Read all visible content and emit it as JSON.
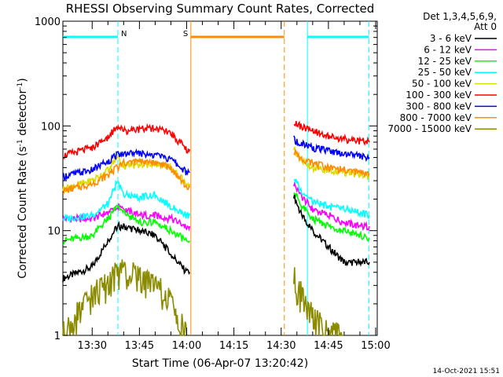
{
  "chart_data": {
    "type": "line",
    "title": "RHESSI Observing Summary Count Rates, Corrected",
    "xlabel": "Start Time (06-Apr-07 13:20:42)",
    "ylabel_main": "Corrected Count Rate (s",
    "ylabel_sup1": "-1",
    "ylabel_mid": " detector",
    "ylabel_sup2": "-1",
    "ylabel_end": ")",
    "ylim": [
      1,
      1000
    ],
    "yscale": "log",
    "y_ticks": [
      {
        "value": 1,
        "label": "1"
      },
      {
        "value": 10,
        "label": "10"
      },
      {
        "value": 100,
        "label": "100"
      },
      {
        "value": 1000,
        "label": "1000"
      }
    ],
    "x_range": [
      "13:20:42",
      "15:00:30"
    ],
    "x_ticks": [
      "13:30",
      "13:45",
      "14:00",
      "14:15",
      "14:30",
      "14:45",
      "15:00"
    ],
    "legend_header": [
      "Det 1,3,4,5,6,9,",
      "Att 0"
    ],
    "legend_position": "top-right outside",
    "series": [
      {
        "name": "3 - 6 keV",
        "color": "#000000",
        "x": [
          "13:20:42",
          "13:30",
          "13:35",
          "13:38",
          "13:40",
          "13:45",
          "13:50",
          "13:55",
          "14:00",
          "14:01",
          "14:34",
          "14:36",
          "14:40",
          "14:45",
          "14:50",
          "14:55",
          "14:58"
        ],
        "y": [
          3.5,
          4.5,
          8,
          11,
          11,
          10,
          9,
          6,
          4,
          4,
          22,
          15,
          10,
          7,
          5,
          5,
          5
        ]
      },
      {
        "name": "6 - 12 keV",
        "color": "#ff00ff",
        "x": [
          "13:20:42",
          "13:30",
          "13:35",
          "13:38",
          "13:40",
          "13:45",
          "13:50",
          "13:55",
          "14:00",
          "14:01",
          "14:34",
          "14:36",
          "14:40",
          "14:45",
          "14:50",
          "14:55",
          "14:58"
        ],
        "y": [
          13,
          13,
          15,
          17,
          16,
          14,
          14,
          13,
          11,
          11,
          28,
          22,
          16,
          14,
          12,
          11,
          11
        ]
      },
      {
        "name": "12 - 25 keV",
        "color": "#00ff00",
        "x": [
          "13:20:42",
          "13:30",
          "13:35",
          "13:38",
          "13:40",
          "13:45",
          "13:50",
          "13:55",
          "14:00",
          "14:01",
          "14:34",
          "14:36",
          "14:40",
          "14:45",
          "14:50",
          "14:55",
          "14:58"
        ],
        "y": [
          8,
          9,
          13,
          17,
          15,
          12,
          12,
          10,
          8,
          8,
          25,
          18,
          13,
          11,
          10,
          9,
          8.5
        ]
      },
      {
        "name": "25 - 50 keV",
        "color": "#00ffff",
        "x": [
          "13:20:42",
          "13:30",
          "13:35",
          "13:38",
          "13:40",
          "13:45",
          "13:50",
          "13:55",
          "14:00",
          "14:01",
          "14:34",
          "14:36",
          "14:40",
          "14:45",
          "14:50",
          "14:55",
          "14:58"
        ],
        "y": [
          13,
          14,
          18,
          30,
          22,
          21,
          22,
          17,
          14,
          14,
          32,
          25,
          19,
          17,
          16,
          15,
          14
        ]
      },
      {
        "name": "50 - 100 keV",
        "color": "#dcdc00",
        "x": [
          "13:20:42",
          "13:30",
          "13:35",
          "13:38",
          "13:40",
          "13:45",
          "13:50",
          "13:55",
          "14:00",
          "14:01",
          "14:34",
          "14:36",
          "14:40",
          "14:45",
          "14:50",
          "14:55",
          "14:58"
        ],
        "y": [
          25,
          30,
          38,
          50,
          42,
          42,
          44,
          40,
          28,
          28,
          62,
          48,
          40,
          38,
          36,
          34,
          33
        ]
      },
      {
        "name": "100 - 300 keV",
        "color": "#ff0000",
        "x": [
          "13:20:42",
          "13:30",
          "13:35",
          "13:38",
          "13:40",
          "13:45",
          "13:50",
          "13:55",
          "14:00",
          "14:01",
          "14:34",
          "14:36",
          "14:40",
          "14:45",
          "14:50",
          "14:55",
          "14:58"
        ],
        "y": [
          52,
          62,
          78,
          100,
          90,
          93,
          95,
          85,
          60,
          60,
          110,
          100,
          90,
          80,
          75,
          72,
          70
        ]
      },
      {
        "name": "300 - 800 keV",
        "color": "#0000ff",
        "x": [
          "13:20:42",
          "13:30",
          "13:35",
          "13:38",
          "13:40",
          "13:45",
          "13:50",
          "13:55",
          "14:00",
          "14:01",
          "14:34",
          "14:36",
          "14:40",
          "14:45",
          "14:50",
          "14:55",
          "14:58"
        ],
        "y": [
          33,
          38,
          46,
          53,
          55,
          55,
          53,
          48,
          36,
          36,
          75,
          68,
          62,
          58,
          55,
          52,
          50
        ]
      },
      {
        "name": "800 - 7000 keV",
        "color": "#ff8c00",
        "x": [
          "13:20:42",
          "13:30",
          "13:35",
          "13:38",
          "13:40",
          "13:45",
          "13:50",
          "13:55",
          "14:00",
          "14:01",
          "14:34",
          "14:36",
          "14:40",
          "14:45",
          "14:50",
          "14:55",
          "14:58"
        ],
        "y": [
          24,
          28,
          34,
          40,
          44,
          46,
          45,
          40,
          26,
          26,
          58,
          50,
          44,
          40,
          38,
          36,
          35
        ]
      },
      {
        "name": "7000 - 15000 keV",
        "color": "#8b8b00",
        "x": [
          "13:20:42",
          "13:25",
          "13:30",
          "13:35",
          "13:38",
          "13:40",
          "13:45",
          "13:50",
          "13:55",
          "14:00",
          "14:34",
          "14:36",
          "14:38",
          "14:40",
          "14:45",
          "14:50"
        ],
        "y": [
          1,
          1.5,
          2.5,
          3,
          4,
          4,
          3.5,
          3,
          2,
          1,
          3.5,
          2.5,
          2,
          1.5,
          1,
          1
        ]
      }
    ],
    "bars": [
      {
        "label": "",
        "color": "#00ffff",
        "start": "13:20:42",
        "end": "13:38:10"
      },
      {
        "label": "N",
        "color": "#00ffff",
        "start": "13:38:10",
        "end": "13:38:10"
      },
      {
        "label": "S",
        "color": "#ff8c00",
        "start": "14:01:20",
        "end": "14:31:00"
      },
      {
        "label": "",
        "color": "#00ffff",
        "start": "14:38:20",
        "end": "14:57:50"
      }
    ],
    "vlines": [
      {
        "time": "13:38:10",
        "color": "#00ffff",
        "style": "dashed"
      },
      {
        "time": "14:01:20",
        "color": "#ff8c00",
        "style": "solid"
      },
      {
        "time": "14:31:00",
        "color": "#ff8c00",
        "style": "dashed"
      },
      {
        "time": "14:38:20",
        "color": "#00ffff",
        "style": "solid"
      },
      {
        "time": "14:57:50",
        "color": "#00ffff",
        "style": "dashed"
      }
    ],
    "grid": false
  },
  "footer_timestamp": "14-Oct-2021 15:51"
}
